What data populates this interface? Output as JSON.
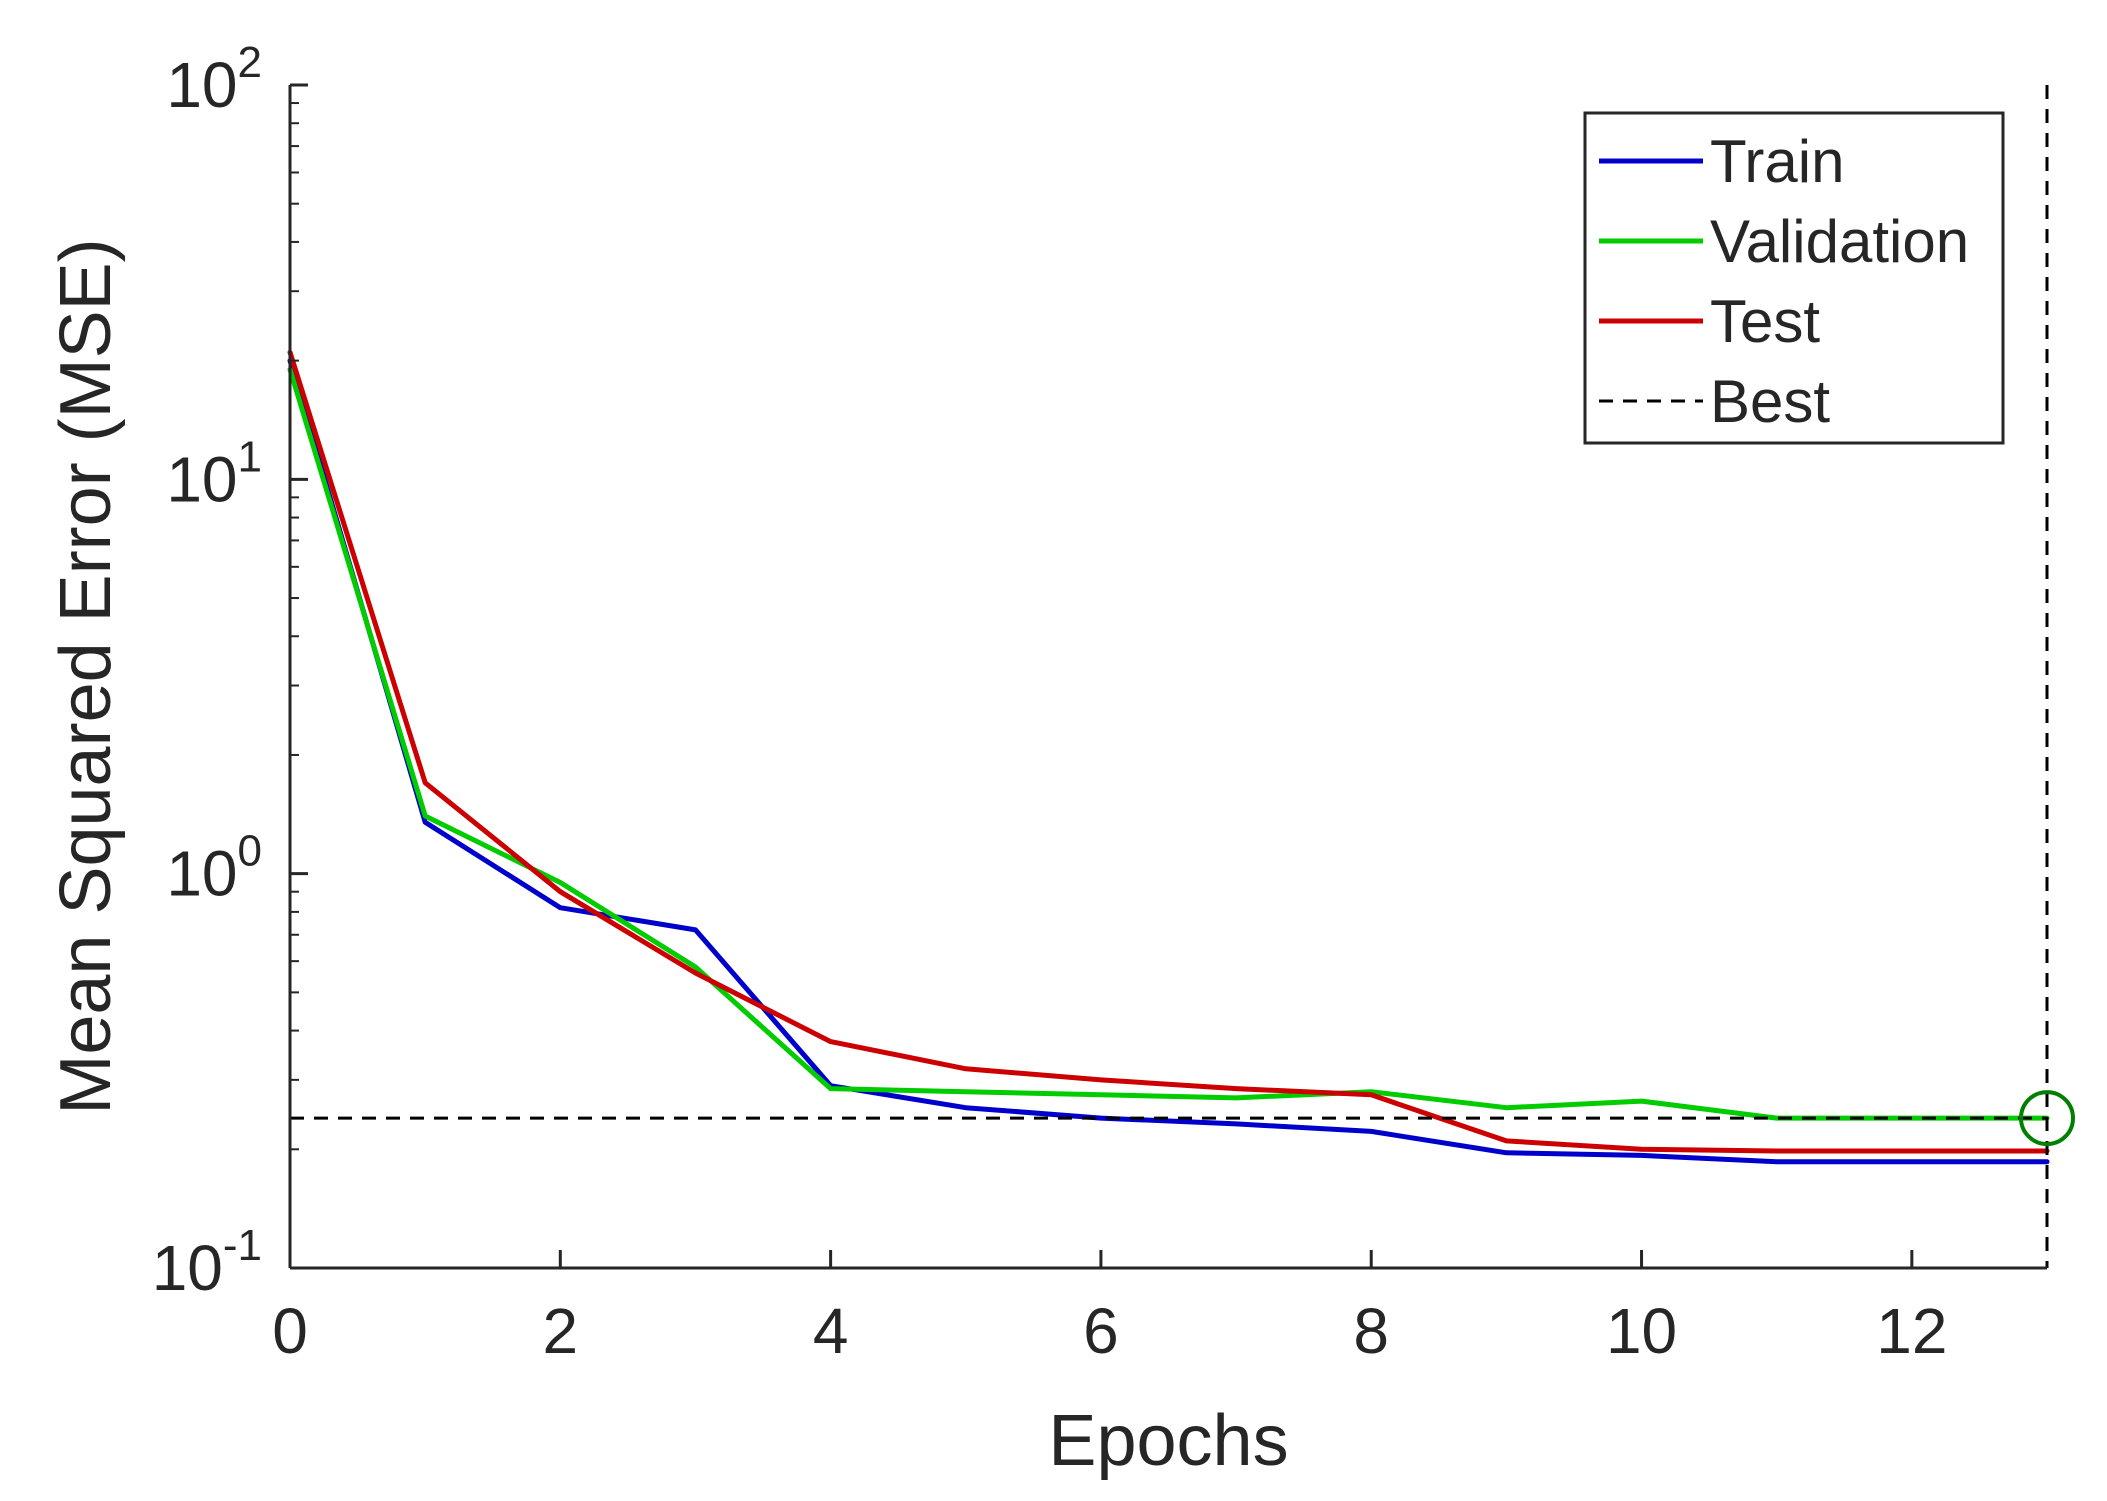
{
  "chart_data": {
    "type": "line",
    "yscale": "log",
    "title": "",
    "xlabel": "Epochs",
    "ylabel": "Mean Squared Error (MSE)",
    "xlim": [
      0,
      13
    ],
    "ylim": [
      0.1,
      100
    ],
    "xticks": [
      0,
      2,
      4,
      6,
      8,
      10,
      12
    ],
    "xtick_labels": [
      "0",
      "2",
      "4",
      "6",
      "8",
      "10",
      "12"
    ],
    "yticks": [
      {
        "value": 0.1,
        "base": "10",
        "exponent": "-1"
      },
      {
        "value": 1,
        "base": "10",
        "exponent": "0"
      },
      {
        "value": 10,
        "base": "10",
        "exponent": "1"
      },
      {
        "value": 100,
        "base": "10",
        "exponent": "2"
      }
    ],
    "legend_position": "top-right",
    "x": [
      0,
      1,
      2,
      3,
      4,
      5,
      6,
      7,
      8,
      9,
      10,
      11,
      12,
      13
    ],
    "series": [
      {
        "name": "Train",
        "color": "#0000cc",
        "values": [
          20,
          1.35,
          0.82,
          0.72,
          0.29,
          0.255,
          0.24,
          0.232,
          0.222,
          0.196,
          0.193,
          0.186,
          0.186,
          0.186
        ]
      },
      {
        "name": "Validation",
        "color": "#00cc00",
        "values": [
          19,
          1.4,
          0.95,
          0.58,
          0.285,
          0.28,
          0.275,
          0.27,
          0.28,
          0.255,
          0.265,
          0.24,
          0.24,
          0.24
        ]
      },
      {
        "name": "Test",
        "color": "#cc0000",
        "values": [
          21,
          1.7,
          0.9,
          0.56,
          0.375,
          0.32,
          0.3,
          0.285,
          0.275,
          0.21,
          0.2,
          0.198,
          0.198,
          0.198
        ]
      }
    ],
    "best": {
      "name": "Best",
      "epoch": 13,
      "value": 0.24,
      "color": "#000000",
      "marker_color": "#008000"
    }
  }
}
